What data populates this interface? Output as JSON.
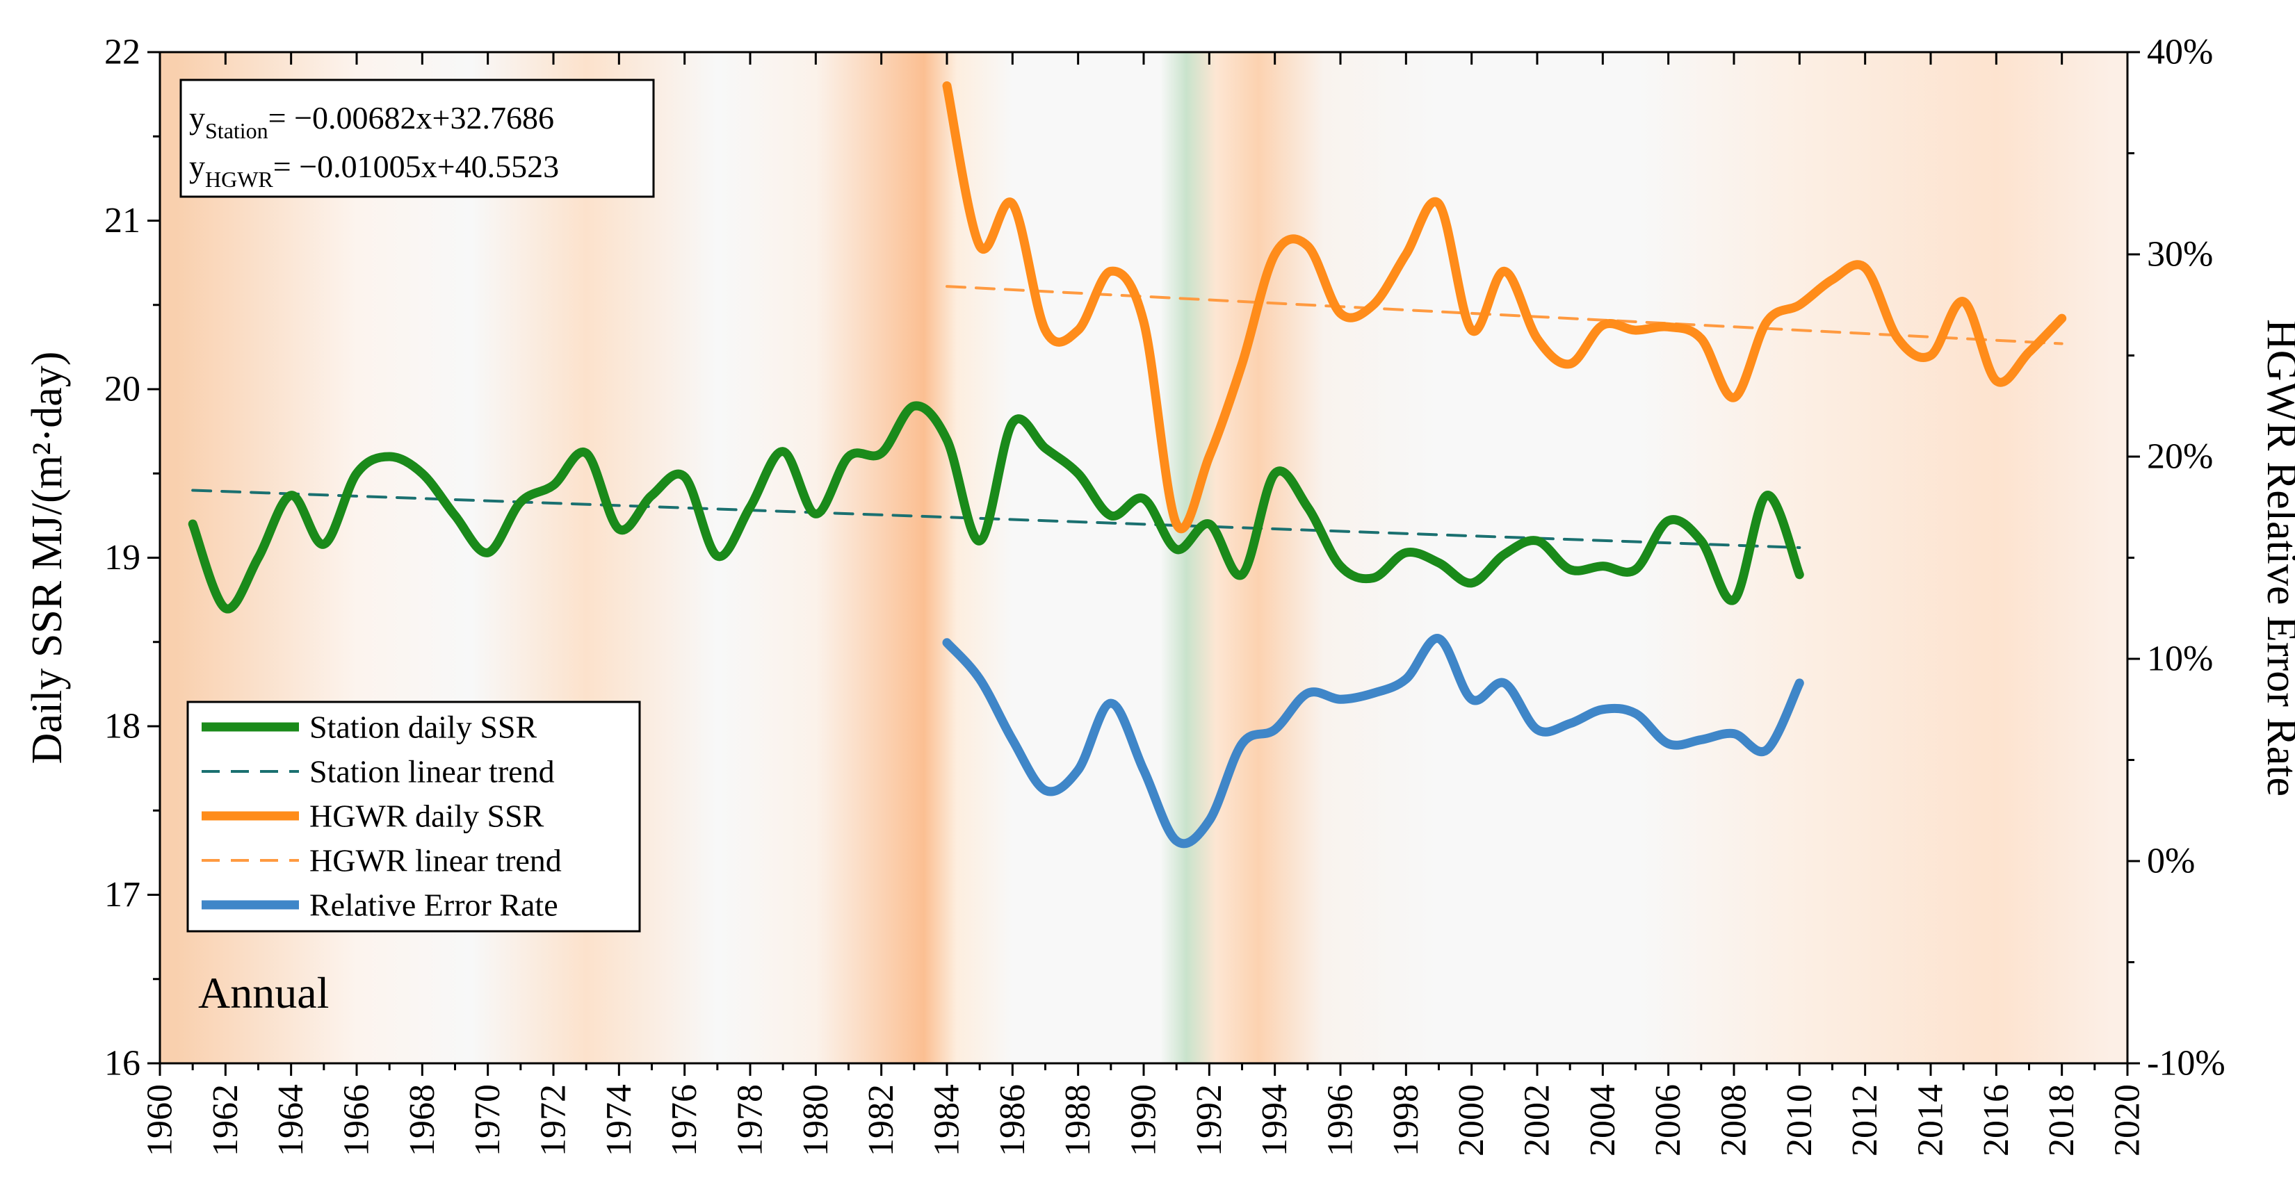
{
  "chart_data": {
    "type": "line",
    "panel_label": "Annual",
    "equation_station": {
      "y": "y",
      "sub": "Station",
      "rhs": "= −0.00682x+32.7686"
    },
    "equation_hgwr": {
      "y": "y",
      "sub": "HGWR",
      "rhs": "= −0.01005x+40.5523"
    },
    "ylabel_left": "Daily SSR MJ/(m²·day)",
    "ylabel_right": "HGWR Relative Error Rate",
    "xlim": [
      1960,
      2020
    ],
    "ylim_left": [
      16,
      22
    ],
    "ylim_right": [
      -0.1,
      0.4
    ],
    "x_ticks": [
      "1960",
      "1962",
      "1964",
      "1966",
      "1968",
      "1970",
      "1972",
      "1974",
      "1976",
      "1978",
      "1980",
      "1982",
      "1984",
      "1986",
      "1988",
      "1990",
      "1992",
      "1994",
      "1996",
      "1998",
      "2000",
      "2002",
      "2004",
      "2006",
      "2008",
      "2010",
      "2012",
      "2014",
      "2016",
      "2018",
      "2020"
    ],
    "y_left_ticks": [
      "16",
      "17",
      "18",
      "19",
      "20",
      "21",
      "22"
    ],
    "y_right_ticks": [
      "-10%",
      "0%",
      "10%",
      "20%",
      "30%",
      "40%"
    ],
    "background_bands": [
      {
        "x": 1960.5,
        "color": "#f9d0ae"
      },
      {
        "x": 1966,
        "color": "#fcf4ee"
      },
      {
        "x": 1969.5,
        "color": "#f8f8f8"
      },
      {
        "x": 1973,
        "color": "#fce2cc"
      },
      {
        "x": 1977,
        "color": "#f8f8f8"
      },
      {
        "x": 1980,
        "color": "#fbf2ea"
      },
      {
        "x": 1983.3,
        "color": "#fbbf92"
      },
      {
        "x": 1984.3,
        "color": "#fdeedf"
      },
      {
        "x": 1986,
        "color": "#f8f8f8"
      },
      {
        "x": 1990.5,
        "color": "#f8f8f8"
      },
      {
        "x": 1991.3,
        "color": "#c9e3cc"
      },
      {
        "x": 1992.2,
        "color": "#fde6d3"
      },
      {
        "x": 1993.5,
        "color": "#fcd2b0"
      },
      {
        "x": 1995.5,
        "color": "#f9f3ee"
      },
      {
        "x": 1999,
        "color": "#f8f8f8"
      },
      {
        "x": 2005,
        "color": "#f8f8f8"
      },
      {
        "x": 2010,
        "color": "#fcefe4"
      },
      {
        "x": 2016,
        "color": "#fde3cf"
      },
      {
        "x": 2019.5,
        "color": "#fcefe6"
      }
    ],
    "series": [
      {
        "name": "Station daily SSR",
        "axis": "left",
        "color": "#1a8a1a",
        "x": [
          1961,
          1962,
          1963,
          1964,
          1965,
          1966,
          1967,
          1968,
          1969,
          1970,
          1971,
          1972,
          1973,
          1974,
          1975,
          1976,
          1977,
          1978,
          1979,
          1980,
          1981,
          1982,
          1983,
          1984,
          1985,
          1986,
          1987,
          1988,
          1989,
          1990,
          1991,
          1992,
          1993,
          1994,
          1995,
          1996,
          1997,
          1998,
          1999,
          2000,
          2001,
          2002,
          2003,
          2004,
          2005,
          2006,
          2007,
          2008,
          2009,
          2010
        ],
        "y": [
          19.2,
          18.7,
          19.0,
          19.37,
          19.08,
          19.5,
          19.6,
          19.5,
          19.25,
          19.03,
          19.33,
          19.43,
          19.62,
          19.17,
          19.37,
          19.48,
          19.01,
          19.3,
          19.63,
          19.26,
          19.6,
          19.62,
          19.9,
          19.7,
          19.1,
          19.8,
          19.65,
          19.5,
          19.25,
          19.35,
          19.05,
          19.2,
          18.9,
          19.5,
          19.3,
          18.95,
          18.88,
          19.03,
          18.97,
          18.85,
          19.02,
          19.1,
          18.93,
          18.95,
          18.93,
          19.22,
          19.1,
          18.75,
          19.37,
          18.9
        ]
      },
      {
        "name": "Station linear trend",
        "axis": "left",
        "color": "#1a7070",
        "dashed": true,
        "x": [
          1961,
          2010
        ],
        "y": [
          19.4,
          19.06
        ]
      },
      {
        "name": "HGWR daily SSR",
        "axis": "left",
        "color": "#ff8c1a",
        "x": [
          1984,
          1985,
          1986,
          1987,
          1988,
          1989,
          1990,
          1991,
          1992,
          1993,
          1994,
          1995,
          1996,
          1997,
          1998,
          1999,
          2000,
          2001,
          2002,
          2003,
          2004,
          2005,
          2006,
          2007,
          2008,
          2009,
          2010,
          2011,
          2012,
          2013,
          2014,
          2015,
          2016,
          2017,
          2018
        ],
        "y": [
          21.8,
          20.85,
          21.1,
          20.35,
          20.35,
          20.7,
          20.4,
          19.2,
          19.6,
          20.15,
          20.8,
          20.85,
          20.45,
          20.5,
          20.8,
          21.1,
          20.35,
          20.7,
          20.3,
          20.15,
          20.38,
          20.35,
          20.37,
          20.3,
          19.95,
          20.4,
          20.5,
          20.65,
          20.72,
          20.3,
          20.2,
          20.52,
          20.05,
          20.22,
          20.42
        ]
      },
      {
        "name": "HGWR linear trend",
        "axis": "left",
        "color": "#ff9a40",
        "dashed": true,
        "x": [
          1984,
          2018
        ],
        "y": [
          20.61,
          20.27
        ]
      },
      {
        "name": "Relative Error Rate",
        "axis": "right",
        "color": "#3f86c8",
        "x": [
          1984,
          1985,
          1986,
          1987,
          1988,
          1989,
          1990,
          1991,
          1992,
          1993,
          1994,
          1995,
          1996,
          1997,
          1998,
          1999,
          2000,
          2001,
          2002,
          2003,
          2004,
          2005,
          2006,
          2007,
          2008,
          2009,
          2010
        ],
        "y": [
          0.108,
          0.09,
          0.06,
          0.035,
          0.045,
          0.078,
          0.045,
          0.01,
          0.02,
          0.058,
          0.065,
          0.083,
          0.08,
          0.083,
          0.09,
          0.11,
          0.08,
          0.088,
          0.065,
          0.068,
          0.075,
          0.073,
          0.058,
          0.06,
          0.063,
          0.055,
          0.088
        ]
      }
    ],
    "legend_position": "bottom-left"
  }
}
